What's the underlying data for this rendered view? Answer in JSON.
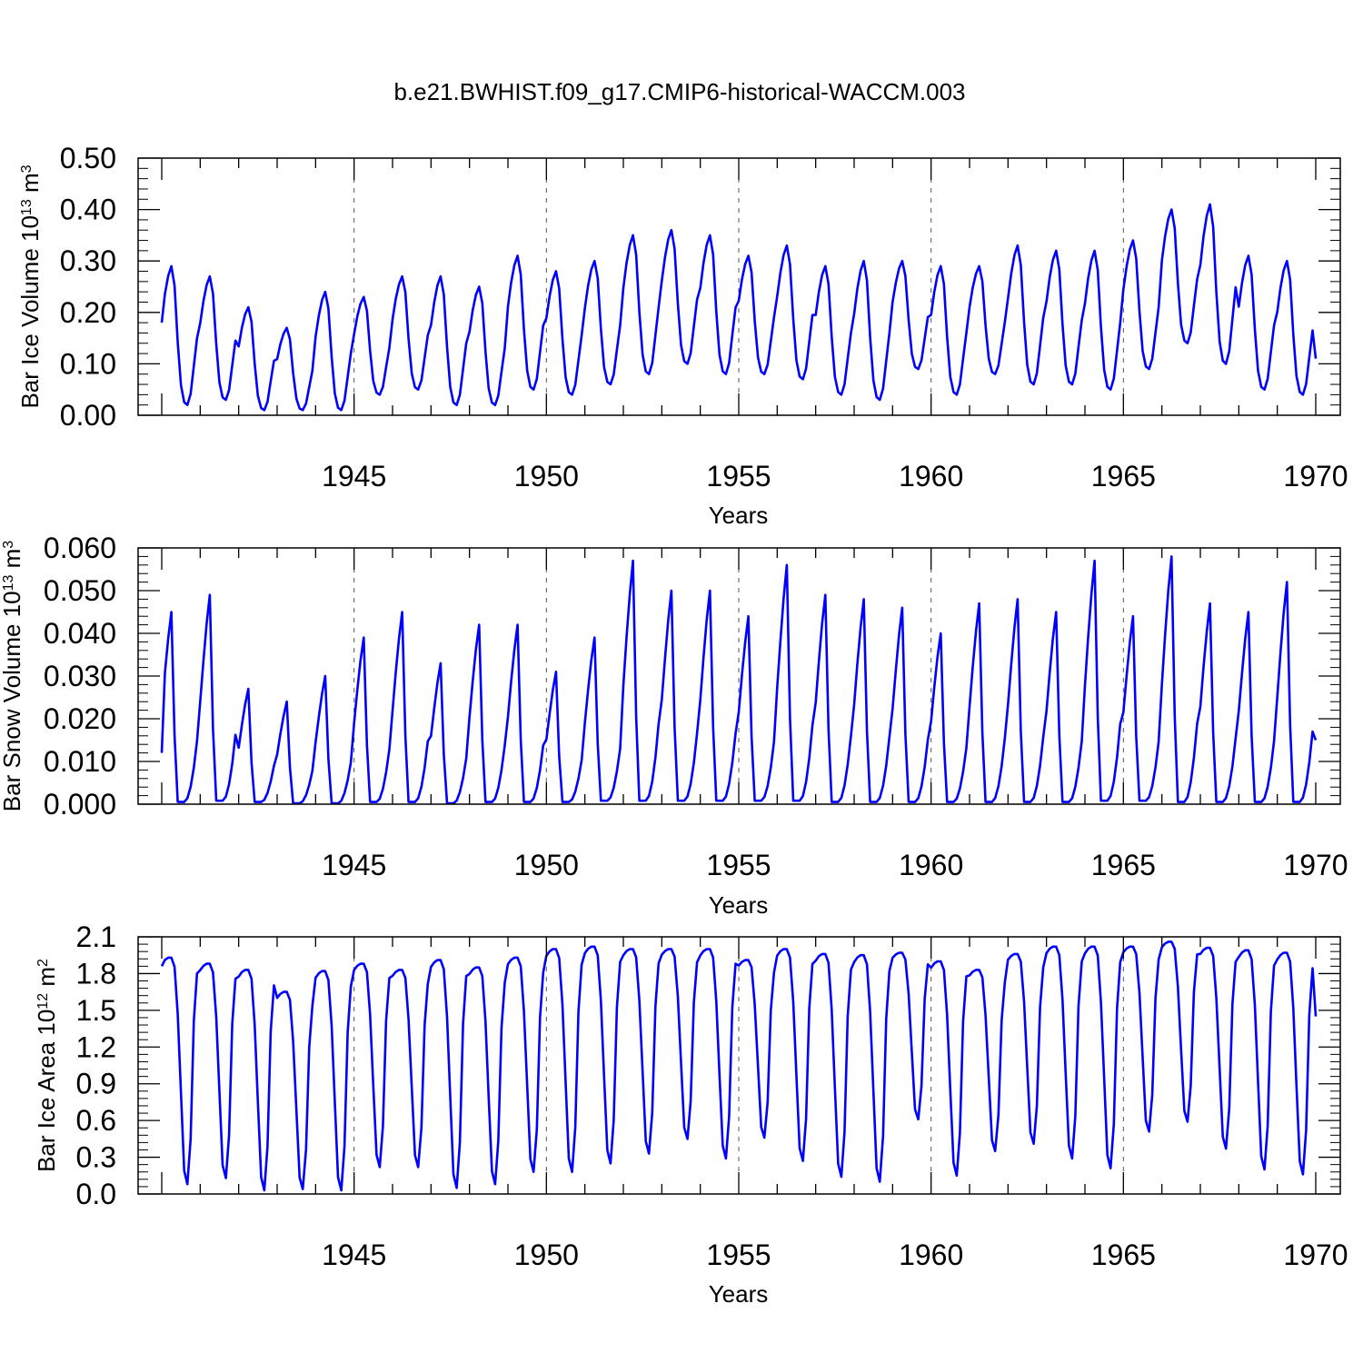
{
  "title": "b.e21.BWHIST.f09_g17.CMIP6-historical-WACCM.003",
  "colors": {
    "line": "#0000ff",
    "axis": "#000000",
    "grid": "#555555"
  },
  "chart_data": [
    {
      "type": "line",
      "name": "ice-volume",
      "ylabel": "Bar Ice Volume 10",
      "ylabel_exp": "13",
      "ylabel_unit": " m",
      "ylabel_unit_exp": "3",
      "xlabel": "Years",
      "xlim": [
        1940.0,
        1970.0
      ],
      "ylim": [
        0.0,
        0.5
      ],
      "yticks": [
        0.0,
        0.1,
        0.2,
        0.3,
        0.4,
        0.5
      ],
      "ytick_labels": [
        "0.00",
        "0.10",
        "0.20",
        "0.30",
        "0.40",
        "0.50"
      ],
      "xticks": [
        1945,
        1950,
        1955,
        1960,
        1965,
        1970
      ],
      "xtick_labels": [
        "1945",
        "1950",
        "1955",
        "1960",
        "1965",
        "1970"
      ],
      "annual_max": [
        0.29,
        0.27,
        0.21,
        0.17,
        0.24,
        0.23,
        0.27,
        0.27,
        0.25,
        0.31,
        0.28,
        0.3,
        0.35,
        0.36,
        0.35,
        0.31,
        0.33,
        0.29,
        0.3,
        0.3,
        0.29,
        0.29,
        0.33,
        0.32,
        0.32,
        0.34,
        0.4,
        0.41,
        0.31,
        0.3
      ],
      "annual_min": [
        0.02,
        0.03,
        0.01,
        0.01,
        0.01,
        0.04,
        0.05,
        0.02,
        0.02,
        0.05,
        0.04,
        0.06,
        0.08,
        0.1,
        0.08,
        0.08,
        0.07,
        0.04,
        0.03,
        0.09,
        0.04,
        0.08,
        0.06,
        0.06,
        0.05,
        0.09,
        0.14,
        0.1,
        0.05,
        0.04
      ],
      "start_value": 0.18,
      "end_value": 0.11
    },
    {
      "type": "line",
      "name": "snow-volume",
      "ylabel": "Bar Snow Volume 10",
      "ylabel_exp": "13",
      "ylabel_unit": " m",
      "ylabel_unit_exp": "3",
      "xlabel": "Years",
      "xlim": [
        1940.0,
        1970.0
      ],
      "ylim": [
        0.0,
        0.06
      ],
      "yticks": [
        0.0,
        0.01,
        0.02,
        0.03,
        0.04,
        0.05,
        0.06
      ],
      "ytick_labels": [
        "0.000",
        "0.010",
        "0.020",
        "0.030",
        "0.040",
        "0.050",
        "0.060"
      ],
      "xticks": [
        1945,
        1950,
        1955,
        1960,
        1965,
        1970
      ],
      "xtick_labels": [
        "1945",
        "1950",
        "1955",
        "1960",
        "1965",
        "1970"
      ],
      "annual_max": [
        0.045,
        0.049,
        0.027,
        0.024,
        0.03,
        0.039,
        0.045,
        0.033,
        0.042,
        0.042,
        0.031,
        0.039,
        0.057,
        0.05,
        0.05,
        0.044,
        0.056,
        0.049,
        0.048,
        0.046,
        0.04,
        0.047,
        0.048,
        0.045,
        0.057,
        0.044,
        0.058,
        0.047,
        0.045,
        0.052
      ],
      "annual_min": [
        0.0005,
        0.0008,
        0.0005,
        0.0002,
        0.0002,
        0.0005,
        0.0005,
        0.0002,
        0.0005,
        0.0005,
        0.0005,
        0.0008,
        0.0008,
        0.0008,
        0.0008,
        0.0008,
        0.0008,
        0.0005,
        0.0005,
        0.0005,
        0.0005,
        0.0005,
        0.0005,
        0.0005,
        0.0008,
        0.0008,
        0.0005,
        0.0005,
        0.0005,
        0.0005
      ],
      "start_value": 0.012,
      "end_value": 0.015
    },
    {
      "type": "line",
      "name": "ice-area",
      "ylabel": "Bar Ice Area 10",
      "ylabel_exp": "12",
      "ylabel_unit": " m",
      "ylabel_unit_exp": "2",
      "xlabel": "Years",
      "xlim": [
        1940.0,
        1970.0
      ],
      "ylim": [
        0.0,
        2.1
      ],
      "yticks": [
        0.0,
        0.3,
        0.6,
        0.9,
        1.2,
        1.5,
        1.8,
        2.1
      ],
      "ytick_labels": [
        "0.0",
        "0.3",
        "0.6",
        "0.9",
        "1.2",
        "1.5",
        "1.8",
        "2.1"
      ],
      "xticks": [
        1945,
        1950,
        1955,
        1960,
        1965,
        1970
      ],
      "xtick_labels": [
        "1945",
        "1950",
        "1955",
        "1960",
        "1965",
        "1970"
      ],
      "annual_max": [
        1.93,
        1.88,
        1.83,
        1.65,
        1.82,
        1.88,
        1.83,
        1.91,
        1.85,
        1.93,
        2.0,
        2.02,
        2.0,
        2.0,
        2.0,
        1.91,
        2.0,
        1.96,
        1.95,
        1.97,
        1.9,
        1.83,
        1.96,
        2.02,
        2.02,
        2.02,
        2.06,
        2.01,
        1.99,
        1.97
      ],
      "annual_min": [
        0.08,
        0.13,
        0.03,
        0.04,
        0.03,
        0.22,
        0.22,
        0.05,
        0.08,
        0.18,
        0.18,
        0.25,
        0.33,
        0.45,
        0.29,
        0.46,
        0.27,
        0.14,
        0.1,
        0.61,
        0.15,
        0.35,
        0.41,
        0.29,
        0.21,
        0.51,
        0.59,
        0.37,
        0.2,
        0.16
      ],
      "start_value": 1.86,
      "end_value": 1.45
    }
  ]
}
